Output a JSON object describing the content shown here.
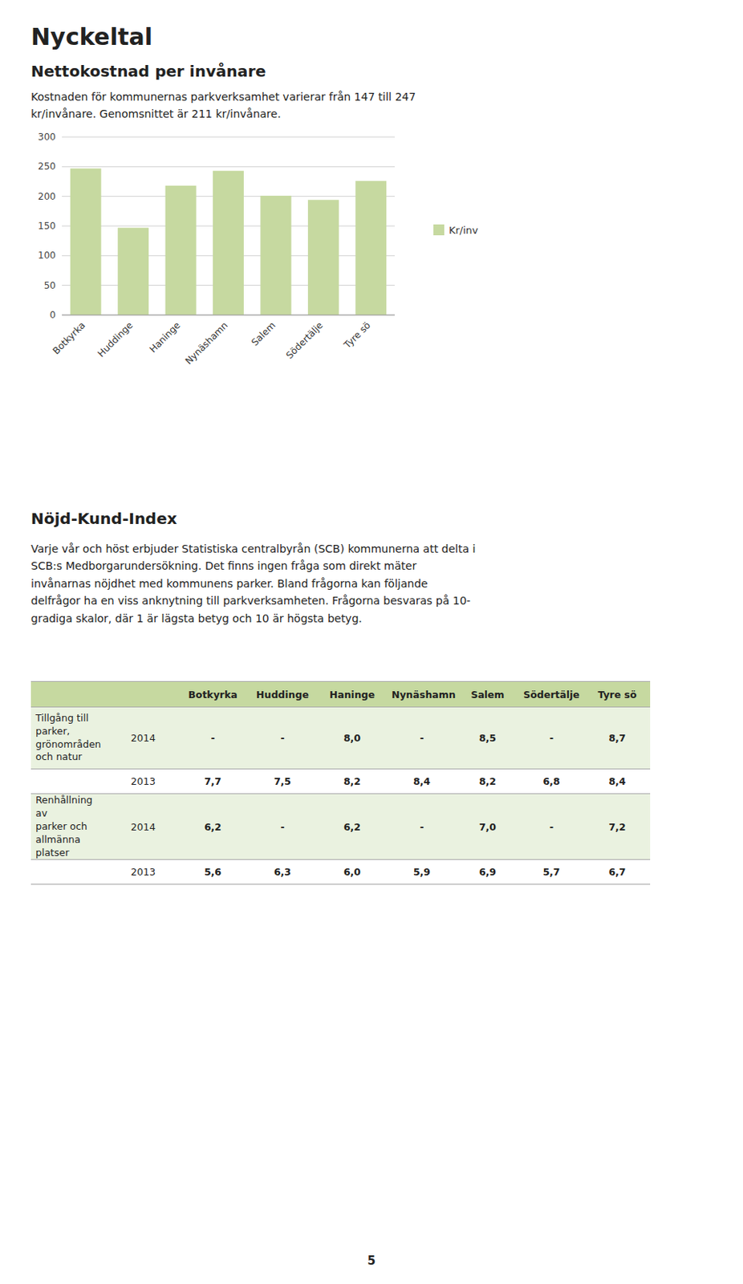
{
  "title": "Nyckeltal",
  "sections": [
    {
      "title": "Nettokostnad per invånare",
      "text": "Kostnaden för kommunernas parkverksamhet varierar från 147 till 247\nkr/invånare. Genomsnittet är 211 kr/invånare."
    },
    {
      "title": "Nöjd-Kund-Index",
      "text": "Varje vår och höst erbjuder Statistiska centralbyrån (SCB) kommunerna att delta i\nSCB:s Medborgarundersökning. Det finns ingen fråga som direkt mäter\ninvånarnas nöjdhet med kommunens parker. Bland frågorna kan följande\ndelfrågor ha en viss anknytning till parkverksamheten. Frågorna besvaras på 10-\ngradiga skalor, där 1 är lägsta betyg och 10 är högsta betyg."
    }
  ],
  "chart_data": {
    "type": "bar",
    "categories": [
      "Botkyrka",
      "Huddinge",
      "Haninge",
      "Nynäshamn",
      "Salem",
      "Södertälje",
      "Tyre sö"
    ],
    "series": [
      {
        "name": "Kr/inv",
        "color": "#c6d9a0",
        "values": [
          247,
          147,
          218,
          243,
          201,
          194,
          226
        ]
      }
    ],
    "ylim": [
      0,
      300
    ],
    "yticks": [
      0,
      50,
      100,
      150,
      200,
      250,
      300
    ],
    "grid": true,
    "legend": "right"
  },
  "table": {
    "columns": [
      "Botkyrka",
      "Huddinge",
      "Haninge",
      "Nynäshamn",
      "Salem",
      "Södertälje",
      "Tyre sö"
    ],
    "header_color": "#c6d9a0",
    "band_color": "#eaf2e0",
    "groups": [
      {
        "label": "Tillgång till\nparker,\ngrönområden\noch natur",
        "rows": [
          {
            "year": "2014",
            "values": [
              "-",
              "-",
              "8,0",
              "-",
              "8,5",
              "-",
              "8,7"
            ]
          },
          {
            "year": "2013",
            "values": [
              "7,7",
              "7,5",
              "8,2",
              "8,4",
              "8,2",
              "6,8",
              "8,4"
            ]
          }
        ]
      },
      {
        "label": "Renhållning av\nparker och\nallmänna\nplatser",
        "rows": [
          {
            "year": "2014",
            "values": [
              "6,2",
              "-",
              "6,2",
              "-",
              "7,0",
              "-",
              "7,2"
            ]
          },
          {
            "year": "2013",
            "values": [
              "5,6",
              "6,3",
              "6,0",
              "5,9",
              "6,9",
              "5,7",
              "6,7"
            ]
          }
        ]
      }
    ]
  },
  "page_number": "5"
}
